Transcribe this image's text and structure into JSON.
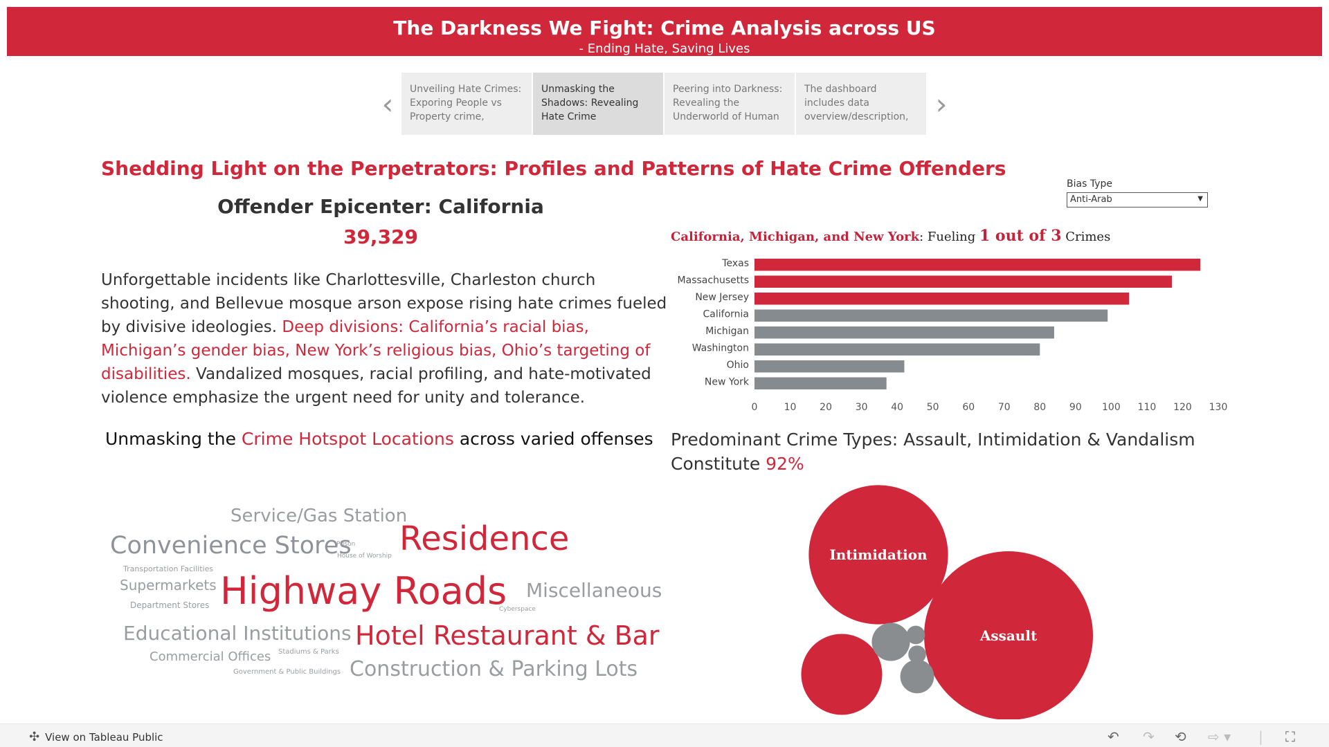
{
  "header": {
    "title": "The Darkness We Fight: Crime Analysis across US",
    "subtitle": "- Ending Hate, Saving Lives"
  },
  "story_nav": {
    "prev_icon": "chevron-left-icon",
    "next_icon": "chevron-right-icon",
    "points": [
      {
        "label": "Unveiling Hate Crimes: Exporing People vs Property crime,"
      },
      {
        "label": "Unmasking the Shadows: Revealing Hate Crime"
      },
      {
        "label": "Peering into Darkness: Revealing the Underworld of Human"
      },
      {
        "label": "The dashboard includes data overview/description,"
      }
    ],
    "active_index": 1
  },
  "main_title": "Shedding Light on the Perpetrators: Profiles and Patterns of Hate Crime Offenders",
  "epicenter": {
    "title": "Offender Epicenter: California",
    "value": "39,329"
  },
  "description": {
    "part1": "Unforgettable incidents like Charlottesville, Charleston church shooting, and Bellevue mosque arson expose rising hate crimes fueled by divisive ideologies. ",
    "highlight": "Deep divisions: California’s racial bias, Michigan’s gender bias, New York’s religious bias, Ohio’s targeting of disabilities.",
    "part2": " Vandalized mosques, racial profiling, and hate-motivated violence emphasize the urgent need for unity and tolerance."
  },
  "bias_filter": {
    "label": "Bias Type",
    "selected": "Anti-Arab"
  },
  "bar_title": {
    "states": "California, Michigan, and New York",
    "mid": ": Fueling ",
    "highlight": "1 out of 3",
    "end": " Crimes"
  },
  "colors": {
    "brand_red": "#d0283a",
    "bar_gray": "#868b90",
    "bubble_gray": "#8a8d90"
  },
  "chart_data": [
    {
      "type": "bar",
      "orientation": "horizontal",
      "categories": [
        "Texas",
        "Massachusetts",
        "New Jersey",
        "California",
        "Michigan",
        "Washington",
        "Ohio",
        "New York"
      ],
      "values": [
        125,
        117,
        105,
        99,
        84,
        80,
        42,
        37
      ],
      "highlighted": [
        true,
        true,
        true,
        false,
        false,
        false,
        false,
        false
      ],
      "xlim": [
        0,
        130
      ],
      "xticks": [
        0,
        10,
        20,
        30,
        40,
        50,
        60,
        70,
        80,
        90,
        100,
        110,
        120,
        130
      ]
    },
    {
      "type": "bubble",
      "title": "Predominant Crime Types: Assault, Intimidation & Vandalism Constitute 92%",
      "bubbles": [
        {
          "label": "Assault",
          "size": 100,
          "color": "red"
        },
        {
          "label": "Intimidation",
          "size": 68,
          "color": "red"
        },
        {
          "label": "",
          "size": 23,
          "color": "red"
        },
        {
          "label": "",
          "size": 5.1,
          "color": "gray"
        },
        {
          "label": "",
          "size": 4.0,
          "color": "gray"
        },
        {
          "label": "",
          "size": 1.2,
          "color": "gray"
        },
        {
          "label": "",
          "size": 1.1,
          "color": "gray"
        },
        {
          "label": "",
          "size": 0.9,
          "color": "gray"
        }
      ]
    }
  ],
  "wordcloud": {
    "title_part1": "Unmasking the ",
    "title_highlight": "Crime Hotspot Locations",
    "title_part2": " across varied offenses",
    "words": [
      {
        "text": "Service/Gas Station",
        "color": "gray"
      },
      {
        "text": "Convenience Stores",
        "color": "gray"
      },
      {
        "text": "Prison",
        "color": "gray"
      },
      {
        "text": "House of Worship",
        "color": "gray"
      },
      {
        "text": "Residence",
        "color": "red"
      },
      {
        "text": "Transportation Facilities",
        "color": "gray"
      },
      {
        "text": "Supermarkets",
        "color": "gray"
      },
      {
        "text": "Highway Roads",
        "color": "red"
      },
      {
        "text": "Miscellaneous",
        "color": "gray"
      },
      {
        "text": "Department Stores",
        "color": "gray"
      },
      {
        "text": "Cyberspace",
        "color": "gray"
      },
      {
        "text": "Educational Institutions",
        "color": "gray"
      },
      {
        "text": "Hotel Restaurant & Bar",
        "color": "red"
      },
      {
        "text": "Commercial Offices",
        "color": "gray"
      },
      {
        "text": "Stadiums & Parks",
        "color": "gray"
      },
      {
        "text": "Government & Public Buildings",
        "color": "gray"
      },
      {
        "text": "Construction & Parking Lots",
        "color": "gray"
      }
    ]
  },
  "bubble_title": {
    "part1": "Predominant Crime Types: Assault, Intimidation & Vandalism Constitute ",
    "highlight": "92%"
  },
  "toolbar": {
    "view_label": "View on Tableau Public",
    "icons": [
      "undo-icon",
      "redo-icon",
      "revert-icon",
      "share-icon",
      "fullscreen-icon"
    ]
  }
}
